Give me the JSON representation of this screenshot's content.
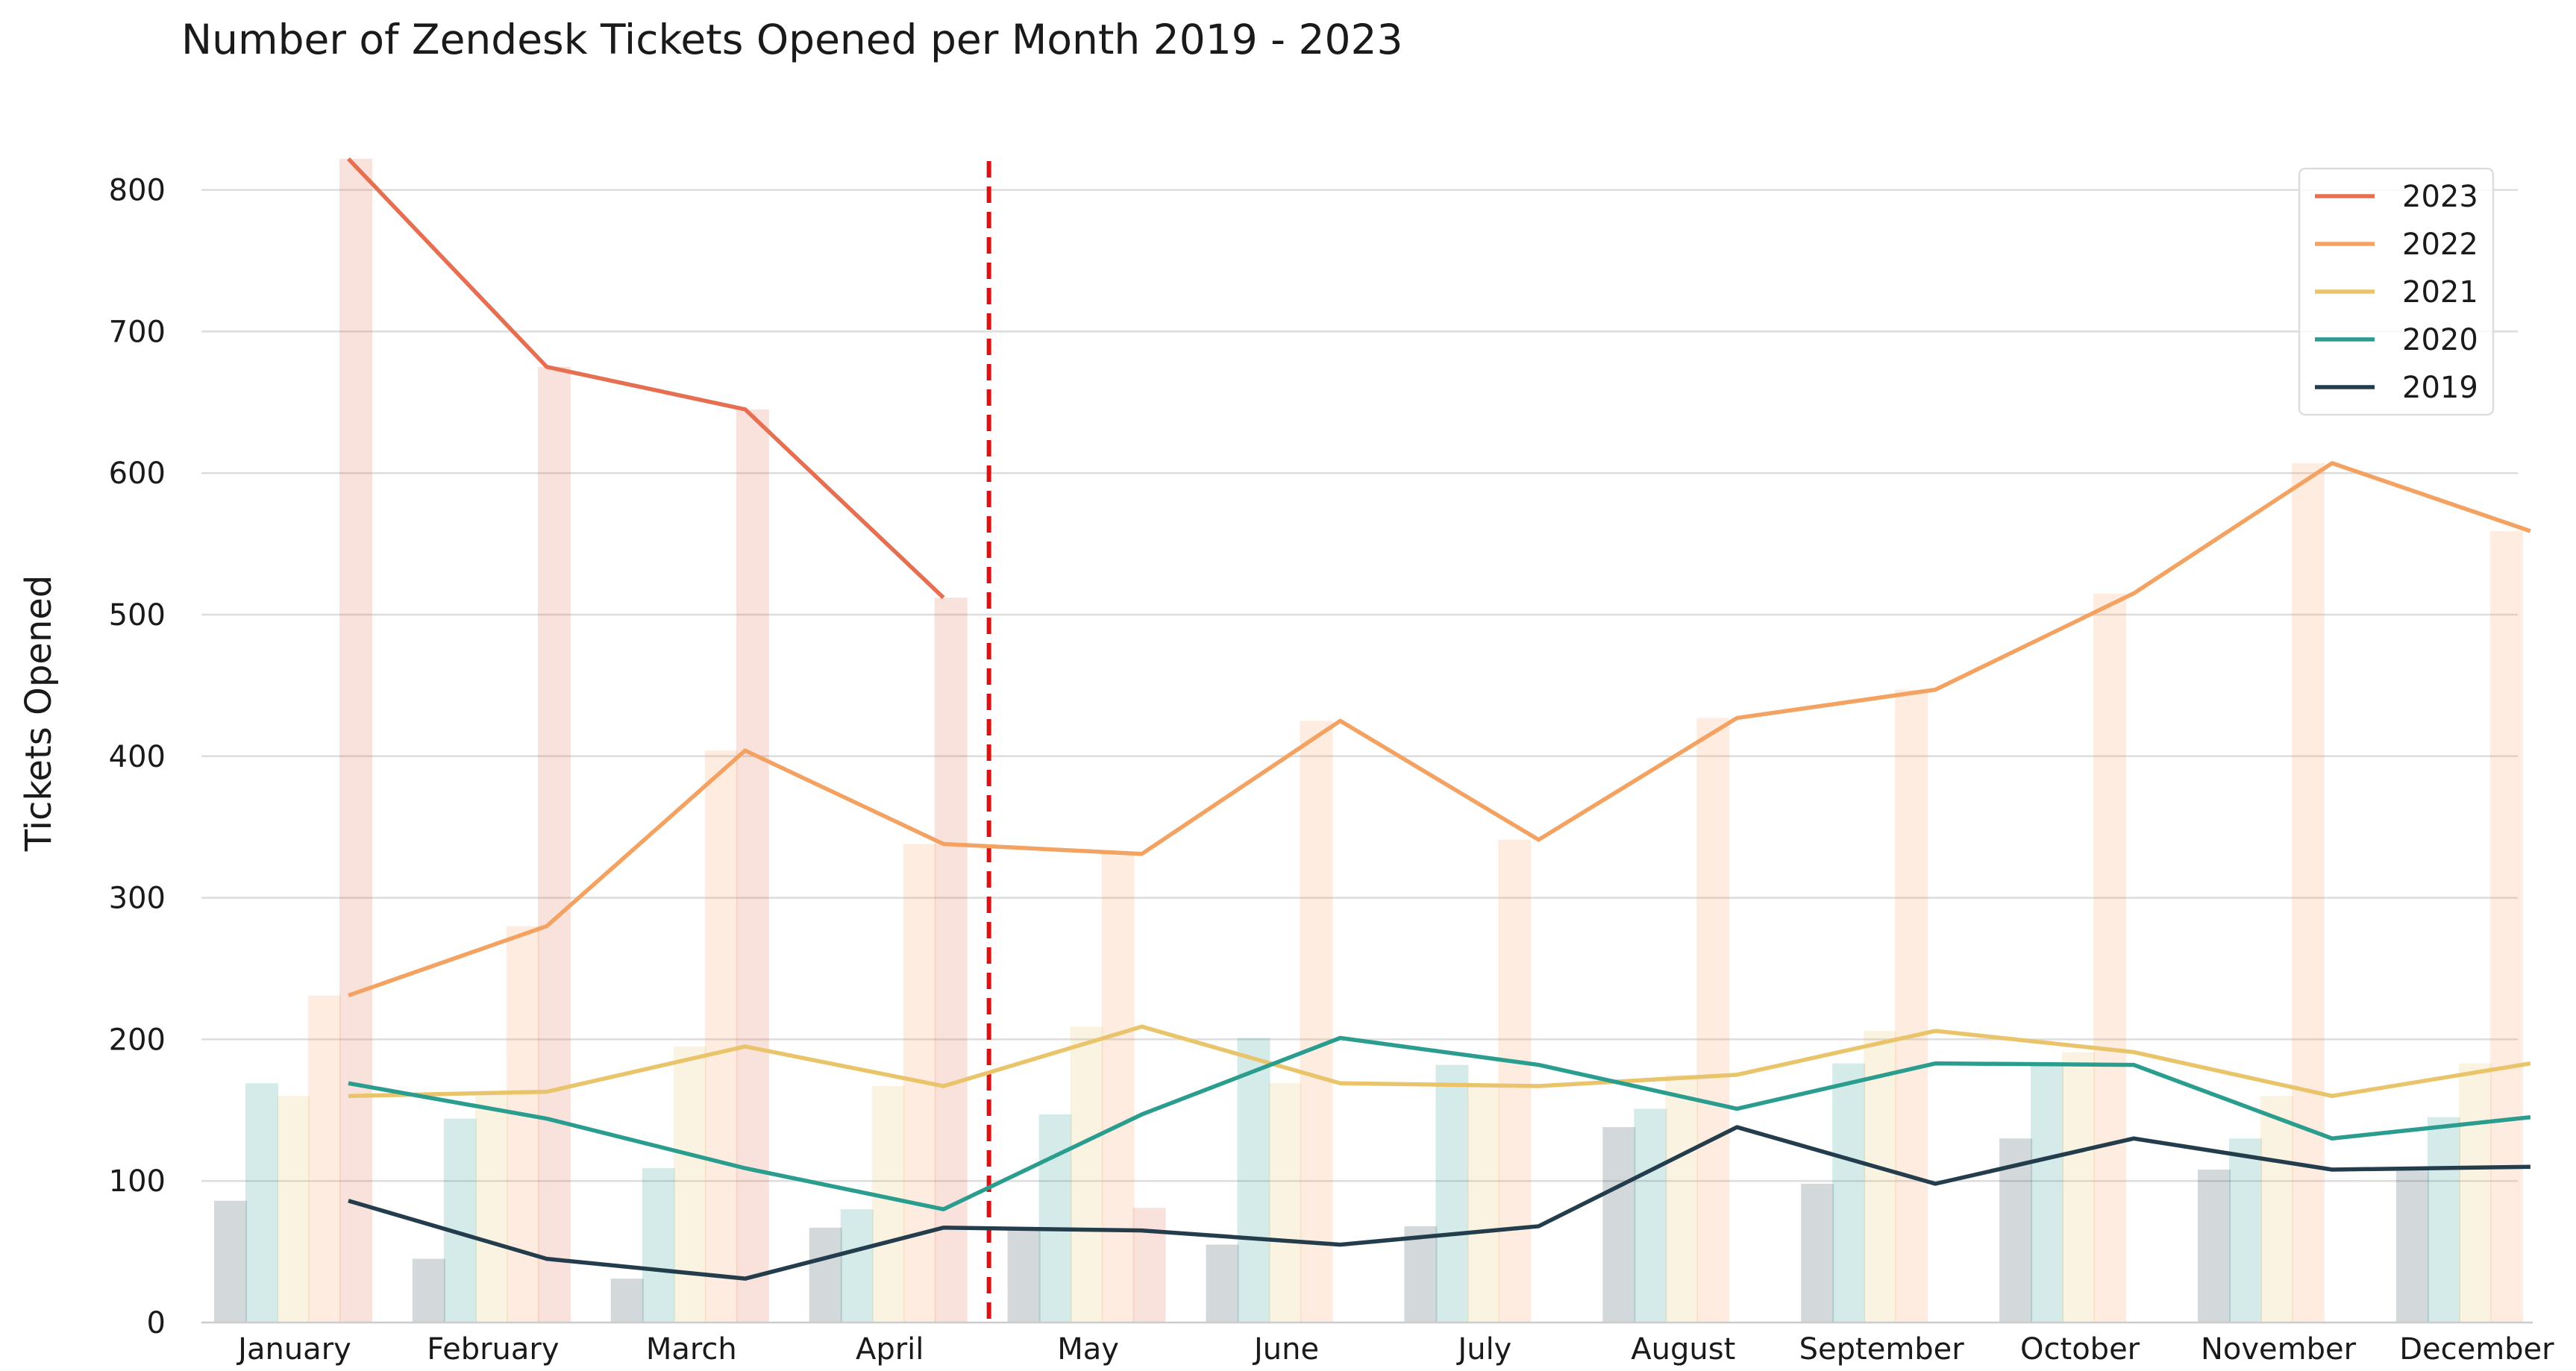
{
  "chart_data": {
    "type": "bar",
    "title": "Number of Zendesk Tickets Opened per Month 2019 - 2023",
    "xlabel": "",
    "ylabel": "Tickets Opened",
    "ylim": [
      0,
      820
    ],
    "yticks": [
      "0",
      "100",
      "200",
      "300",
      "400",
      "500",
      "600",
      "700",
      "800"
    ],
    "grid": true,
    "legend_position": "top-right",
    "annotation": "dashed vertical line between April and May",
    "categories": [
      "January",
      "February",
      "March",
      "April",
      "May",
      "June",
      "July",
      "August",
      "September",
      "October",
      "November",
      "December"
    ],
    "series": [
      {
        "name": "2019",
        "color": "#233d4d",
        "values": [
          86,
          45,
          31,
          67,
          65,
          55,
          68,
          138,
          98,
          130,
          108,
          110
        ]
      },
      {
        "name": "2020",
        "color": "#2a9d8f",
        "values": [
          169,
          144,
          109,
          80,
          147,
          201,
          182,
          151,
          183,
          182,
          130,
          145
        ]
      },
      {
        "name": "2021",
        "color": "#e9c46a",
        "values": [
          160,
          163,
          195,
          167,
          209,
          169,
          167,
          175,
          206,
          191,
          160,
          183
        ]
      },
      {
        "name": "2022",
        "color": "#f4a261",
        "values": [
          231,
          280,
          404,
          338,
          331,
          425,
          341,
          427,
          447,
          515,
          607,
          559
        ]
      },
      {
        "name": "2023",
        "color": "#e76f51",
        "values": [
          822,
          675,
          645,
          512,
          81,
          null,
          null,
          null,
          null,
          null,
          null,
          null
        ]
      }
    ],
    "line_series": [
      {
        "name": "2023",
        "color": "#e76f51",
        "values": [
          822,
          675,
          645,
          512,
          null,
          null,
          null,
          null,
          null,
          null,
          null,
          null
        ]
      },
      {
        "name": "2022",
        "color": "#f4a261",
        "values": [
          231,
          280,
          404,
          338,
          331,
          425,
          341,
          427,
          447,
          515,
          607,
          559
        ]
      },
      {
        "name": "2021",
        "color": "#e9c46a",
        "values": [
          160,
          163,
          195,
          167,
          209,
          169,
          167,
          175,
          206,
          191,
          160,
          183
        ]
      },
      {
        "name": "2020",
        "color": "#2a9d8f",
        "values": [
          169,
          144,
          109,
          80,
          147,
          201,
          182,
          151,
          183,
          182,
          130,
          145
        ]
      },
      {
        "name": "2019",
        "color": "#233d4d",
        "values": [
          86,
          45,
          31,
          67,
          65,
          55,
          68,
          138,
          98,
          130,
          108,
          110
        ]
      }
    ],
    "legend": [
      "2023",
      "2022",
      "2021",
      "2020",
      "2019"
    ],
    "legend_colors": [
      "#e76f51",
      "#f4a261",
      "#e9c46a",
      "#2a9d8f",
      "#233d4d"
    ],
    "vline_color": "#dd1111"
  }
}
